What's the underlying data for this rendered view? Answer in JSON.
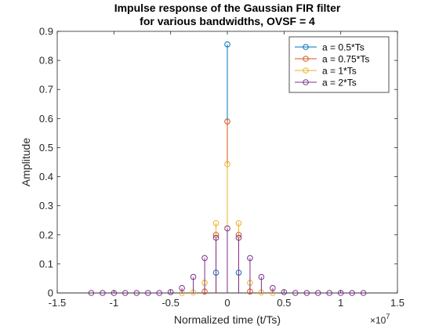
{
  "chart_data": {
    "type": "stem",
    "title": [
      "Impulse response of the Gaussian FIR filter",
      "for various bandwidths, OVSF = 4"
    ],
    "xlabel": "Normalized time (t/Ts)",
    "ylabel": "Amplitude",
    "x_exponent_label": "×10",
    "x_exponent_power": "7",
    "xlim": [
      -1.5,
      1.5
    ],
    "ylim": [
      0,
      0.9
    ],
    "xticks": [
      -1.5,
      -1,
      -0.5,
      0,
      0.5,
      1,
      1.5
    ],
    "xtick_labels": [
      "-1.5",
      "-1",
      "-0.5",
      "0",
      "0.5",
      "1",
      "1.5"
    ],
    "yticks": [
      0,
      0.1,
      0.2,
      0.3,
      0.4,
      0.5,
      0.6,
      0.7,
      0.8,
      0.9
    ],
    "ytick_labels": [
      "0",
      "0.1",
      "0.2",
      "0.3",
      "0.4",
      "0.5",
      "0.6",
      "0.7",
      "0.8",
      "0.9"
    ],
    "grid": false,
    "legend_position": "top-right",
    "marker": "circle",
    "series": [
      {
        "name": "a = 0.5*Ts",
        "color": "#0072bd",
        "x": [
          -0.1,
          0,
          0.1
        ],
        "y": [
          0.07,
          0.855,
          0.07
        ]
      },
      {
        "name": "a = 0.75*Ts",
        "color": "#d95319",
        "x": [
          -0.2,
          -0.1,
          0,
          0.1,
          0.2
        ],
        "y": [
          0.005,
          0.2,
          0.59,
          0.2,
          0.005
        ]
      },
      {
        "name": "a = 1*Ts",
        "color": "#edb120",
        "x": [
          -0.4,
          -0.3,
          -0.2,
          -0.1,
          0,
          0.1,
          0.2,
          0.3,
          0.4
        ],
        "y": [
          0,
          0.002,
          0.035,
          0.24,
          0.443,
          0.24,
          0.035,
          0.002,
          0
        ]
      },
      {
        "name": "a = 2*Ts",
        "color": "#7e2f8e",
        "x": [
          -1.2,
          -1.1,
          -1.0,
          -0.9,
          -0.8,
          -0.7,
          -0.6,
          -0.5,
          -0.4,
          -0.3,
          -0.2,
          -0.1,
          0,
          0.1,
          0.2,
          0.3,
          0.4,
          0.5,
          0.6,
          0.7,
          0.8,
          0.9,
          1.0,
          1.1,
          1.2
        ],
        "y": [
          0,
          0,
          0,
          0,
          0,
          0,
          0,
          0.003,
          0.017,
          0.055,
          0.12,
          0.19,
          0.222,
          0.19,
          0.12,
          0.055,
          0.017,
          0.003,
          0,
          0,
          0,
          0,
          0,
          0,
          0
        ]
      }
    ]
  }
}
